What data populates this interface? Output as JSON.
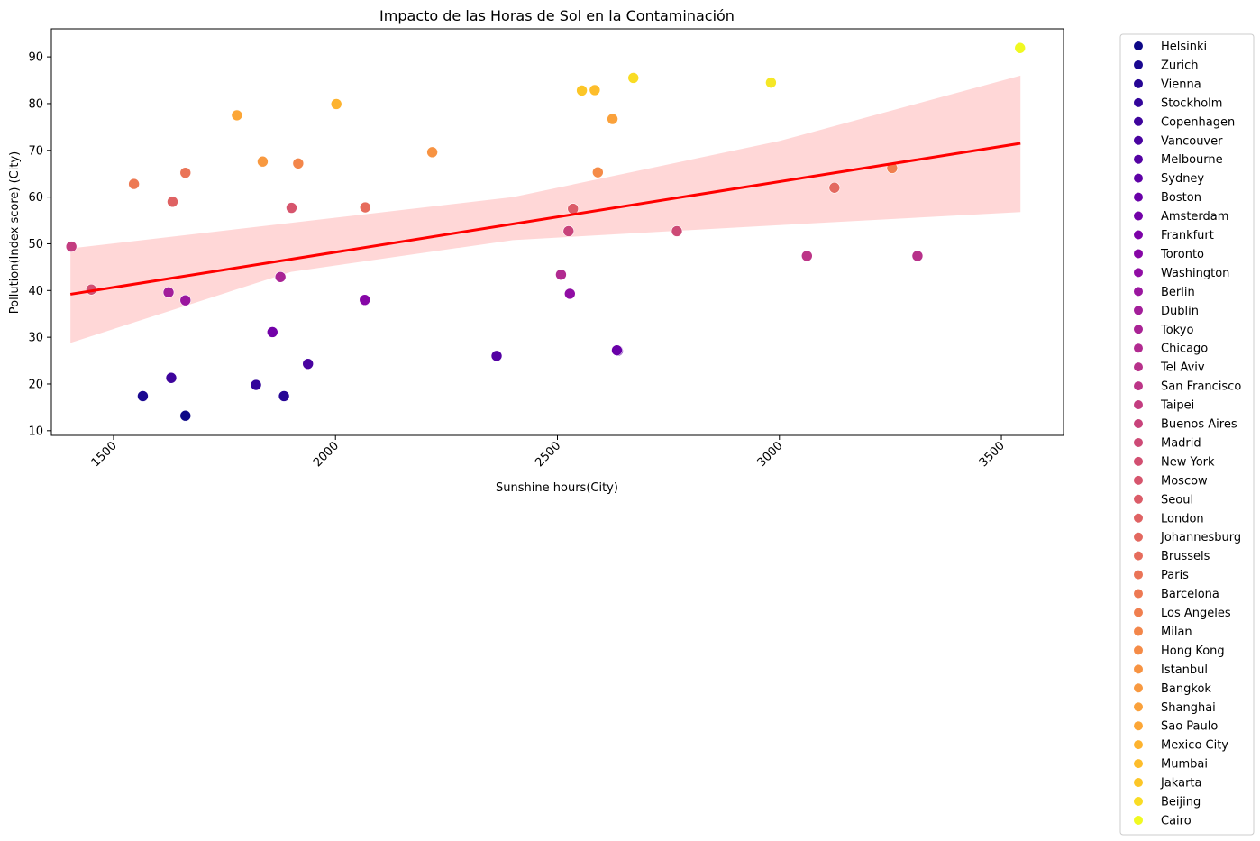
{
  "chart_data": {
    "type": "scatter",
    "title": "Impacto de las Horas de Sol en la Contaminación",
    "xlabel": "Sunshine hours(City)",
    "ylabel": "Pollution(Index score) (City)",
    "xlim": [
      1360,
      3640
    ],
    "ylim": [
      9,
      96
    ],
    "x_ticks": [
      1500,
      2000,
      2500,
      3000,
      3500
    ],
    "y_ticks": [
      10,
      20,
      30,
      40,
      50,
      60,
      70,
      80,
      90
    ],
    "x_tick_labels": [
      "1500",
      "2000",
      "2500",
      "3000",
      "3500"
    ],
    "y_tick_labels": [
      "10",
      "20",
      "30",
      "40",
      "50",
      "60",
      "70",
      "80",
      "90"
    ],
    "grid": false,
    "legend_position": "outside-right",
    "regression": {
      "line": [
        [
          1403,
          39.2
        ],
        [
          3543,
          71.5
        ]
      ],
      "ci_upper": [
        [
          1403,
          49.0
        ],
        [
          2400,
          60.0
        ],
        [
          3000,
          72.0
        ],
        [
          3543,
          86.0
        ]
      ],
      "ci_lower": [
        [
          1403,
          28.8
        ],
        [
          1900,
          44.0
        ],
        [
          2400,
          50.8
        ],
        [
          3000,
          54.0
        ],
        [
          3543,
          56.8
        ]
      ],
      "line_color": "#ff0000",
      "band_color": "#ffb6b6"
    },
    "series": [
      {
        "name": "Helsinki",
        "color": "#0d0887",
        "x": 1662,
        "y": 13.2
      },
      {
        "name": "Zurich",
        "color": "#1a0890",
        "x": 1566,
        "y": 17.4
      },
      {
        "name": "Vienna",
        "color": "#260595",
        "x": 1884,
        "y": 17.4
      },
      {
        "name": "Stockholm",
        "color": "#33059b",
        "x": 1821,
        "y": 19.8
      },
      {
        "name": "Copenhagen",
        "color": "#3e049c",
        "x": 1630,
        "y": 21.3
      },
      {
        "name": "Vancouver",
        "color": "#4903a0",
        "x": 1938,
        "y": 24.3
      },
      {
        "name": "Melbourne",
        "color": "#5402a3",
        "x": 2363,
        "y": 26.0
      },
      {
        "name": "Sydney",
        "color": "#5e01a6",
        "x": 2636,
        "y": 27.1
      },
      {
        "name": "Boston",
        "color": "#6900a8",
        "x": 2634,
        "y": 27.2
      },
      {
        "name": "Amsterdam",
        "color": "#7201a8",
        "x": 1858,
        "y": 31.1
      },
      {
        "name": "Frankfurt",
        "color": "#7c02a8",
        "x": 2066,
        "y": 37.9
      },
      {
        "name": "Toronto",
        "color": "#8606a6",
        "x": 2066,
        "y": 38.0
      },
      {
        "name": "Washington",
        "color": "#900da4",
        "x": 2528,
        "y": 39.3
      },
      {
        "name": "Berlin",
        "color": "#9a169f",
        "x": 1662,
        "y": 37.9
      },
      {
        "name": "Dublin",
        "color": "#a31e9a",
        "x": 1624,
        "y": 39.6
      },
      {
        "name": "Tokyo",
        "color": "#a92395",
        "x": 1876,
        "y": 42.9
      },
      {
        "name": "Chicago",
        "color": "#b12a90",
        "x": 2508,
        "y": 43.4
      },
      {
        "name": "Tel Aviv",
        "color": "#b7318a",
        "x": 3311,
        "y": 47.4
      },
      {
        "name": "San Francisco",
        "color": "#bc3587",
        "x": 3062,
        "y": 47.4
      },
      {
        "name": "Taipei",
        "color": "#c33d80",
        "x": 1405,
        "y": 49.4
      },
      {
        "name": "Buenos Aires",
        "color": "#c8437b",
        "x": 2525,
        "y": 52.7
      },
      {
        "name": "Madrid",
        "color": "#cd4a76",
        "x": 2769,
        "y": 52.7
      },
      {
        "name": "New York",
        "color": "#d24f71",
        "x": 1450,
        "y": 40.2
      },
      {
        "name": "Moscow",
        "color": "#d6556d",
        "x": 1901,
        "y": 57.7
      },
      {
        "name": "Seoul",
        "color": "#db5c68",
        "x": 2535,
        "y": 57.5
      },
      {
        "name": "London",
        "color": "#df6263",
        "x": 1633,
        "y": 59.0
      },
      {
        "name": "Johannesburg",
        "color": "#e3685f",
        "x": 3124,
        "y": 62.0
      },
      {
        "name": "Brussels",
        "color": "#e66c5c",
        "x": 2067,
        "y": 57.8
      },
      {
        "name": "Paris",
        "color": "#ea7457",
        "x": 1662,
        "y": 65.2
      },
      {
        "name": "Barcelona",
        "color": "#ed7953",
        "x": 1546,
        "y": 62.8
      },
      {
        "name": "Los Angeles",
        "color": "#f07f4f",
        "x": 3254,
        "y": 66.2
      },
      {
        "name": "Milan",
        "color": "#f3864a",
        "x": 1916,
        "y": 67.2
      },
      {
        "name": "Hong Kong",
        "color": "#f58b47",
        "x": 2591,
        "y": 65.3
      },
      {
        "name": "Istanbul",
        "color": "#f79342",
        "x": 2218,
        "y": 69.6
      },
      {
        "name": "Bangkok",
        "color": "#f89940",
        "x": 1836,
        "y": 67.6
      },
      {
        "name": "Shanghai",
        "color": "#faa13b",
        "x": 2624,
        "y": 76.7
      },
      {
        "name": "Sao Paulo",
        "color": "#fca636",
        "x": 1778,
        "y": 77.5
      },
      {
        "name": "Mexico City",
        "color": "#fdb32f",
        "x": 2002,
        "y": 79.9
      },
      {
        "name": "Mumbai",
        "color": "#fdbd2b",
        "x": 2584,
        "y": 82.9
      },
      {
        "name": "Jakarta",
        "color": "#fcc627",
        "x": 2555,
        "y": 82.8
      },
      {
        "name": "Beijing",
        "color": "#f9dc24",
        "x": 2671,
        "y": 85.5
      },
      {
        "name": "Cairo",
        "color": "#f0f921",
        "x": 3542,
        "y": 91.9
      },
      {
        "name": "",
        "color": "#f5e726",
        "x": 2981,
        "y": 84.5
      }
    ]
  }
}
